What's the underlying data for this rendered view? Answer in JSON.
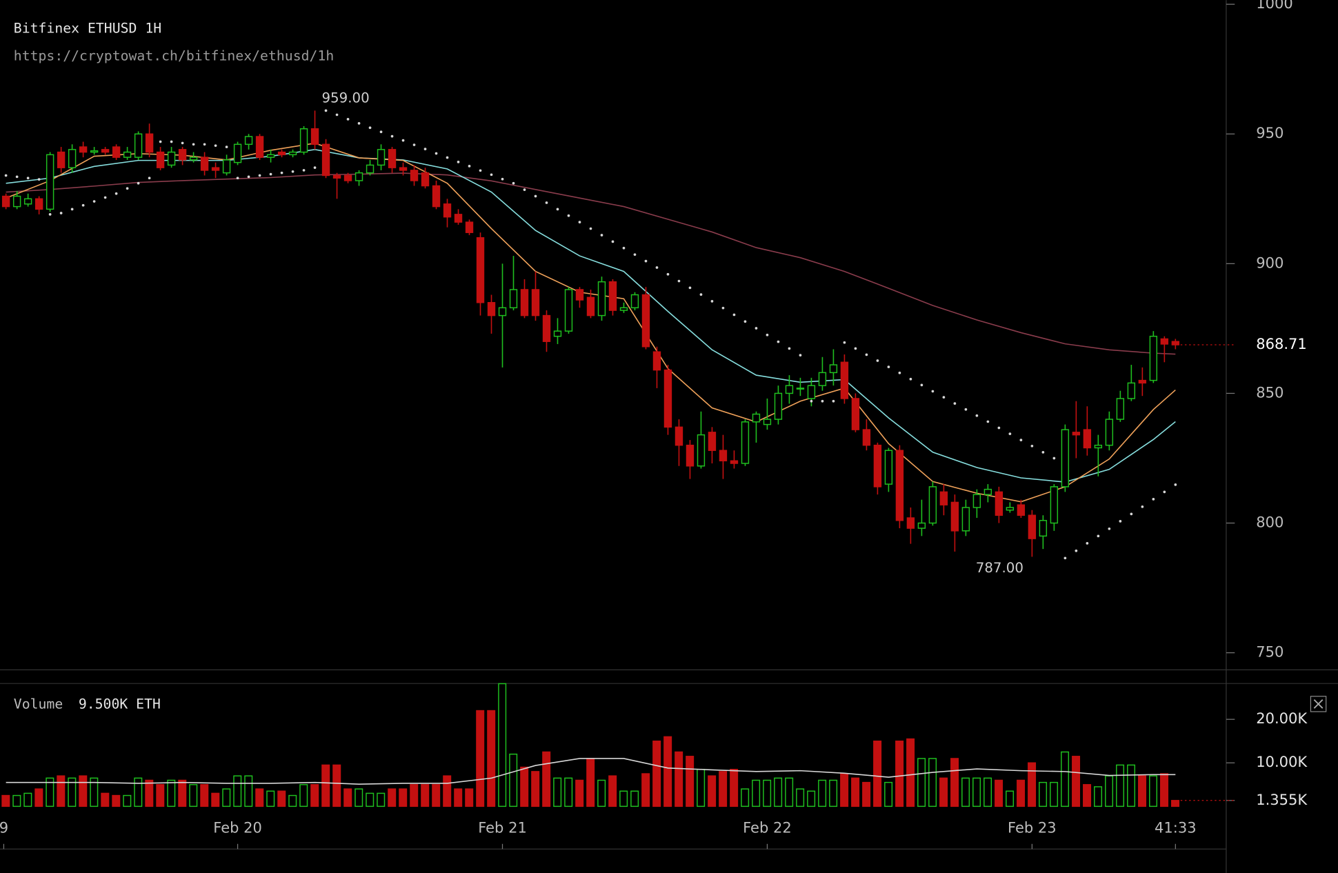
{
  "chart_data": {
    "type": "candlestick",
    "title": "Bitfinex ETHUSD 1H",
    "subtitle": "https://cryptowat.ch/bitfinex/ethusd/1h",
    "up_color": "#1fbf1f",
    "down_color": "#c41010",
    "xlim": [
      -0.54,
      110.6
    ],
    "xticks": [
      {
        "value": -0.2,
        "label": "9"
      },
      {
        "value": 21,
        "label": "Feb 20"
      },
      {
        "value": 45,
        "label": "Feb 21"
      },
      {
        "value": 69,
        "label": "Feb 22"
      },
      {
        "value": 93,
        "label": "Feb 23"
      },
      {
        "value": 106,
        "label": "41:33"
      }
    ],
    "ylim": [
      744.4,
      1001.6
    ],
    "yticks": [
      750,
      800,
      850,
      900,
      950,
      1000
    ],
    "open": [
      926,
      922,
      923,
      925,
      921,
      943,
      937,
      945,
      943,
      944,
      945,
      941,
      941,
      950,
      943,
      938,
      944,
      940,
      941,
      937,
      935,
      939,
      946,
      949,
      941,
      943,
      942,
      943,
      952,
      946,
      934,
      934,
      932,
      935,
      938,
      944,
      937,
      936,
      935,
      930,
      923,
      919,
      916,
      910,
      885,
      880,
      883,
      890,
      890,
      880,
      872,
      874,
      890,
      887,
      880,
      893,
      882,
      883,
      888,
      866,
      859,
      837,
      830,
      822,
      835,
      828,
      824,
      823,
      839,
      838,
      840,
      850,
      852,
      848,
      853,
      858,
      862,
      848,
      836,
      830,
      815,
      828,
      802,
      798,
      800,
      812,
      808,
      797,
      806,
      811,
      812,
      805,
      807,
      803,
      795,
      800,
      814,
      835,
      836,
      829,
      830,
      840,
      848,
      855,
      855,
      871,
      870
    ],
    "high": [
      927,
      928,
      927,
      926,
      943,
      945,
      946,
      947,
      945,
      945,
      946,
      945,
      951,
      954,
      945,
      945,
      945,
      943,
      943,
      939,
      942,
      947,
      950,
      950,
      944,
      944,
      944,
      953,
      959,
      948,
      935,
      935,
      936,
      940,
      946,
      945,
      939,
      938,
      937,
      932,
      925,
      921,
      917,
      912,
      888,
      900,
      903,
      894,
      897,
      882,
      879,
      891,
      891,
      890,
      895,
      894,
      885,
      889,
      891,
      868,
      861,
      840,
      832,
      843,
      837,
      834,
      828,
      840,
      843,
      848,
      853,
      857,
      856,
      856,
      864,
      867,
      865,
      850,
      840,
      831,
      829,
      830,
      806,
      809,
      816,
      815,
      811,
      809,
      813,
      815,
      814,
      808,
      809,
      805,
      803,
      815,
      838,
      847,
      845,
      834,
      843,
      851,
      861,
      860,
      874,
      872,
      871
    ],
    "low": [
      921,
      921,
      922,
      919,
      920,
      935,
      935,
      941,
      942,
      942,
      940,
      940,
      940,
      941,
      936,
      937,
      938,
      939,
      934,
      933,
      934,
      938,
      944,
      940,
      939,
      941,
      941,
      942,
      944,
      933,
      925,
      931,
      930,
      934,
      936,
      935,
      934,
      930,
      929,
      921,
      914,
      915,
      911,
      880,
      873,
      860,
      882,
      879,
      878,
      866,
      869,
      873,
      883,
      879,
      878,
      880,
      881,
      882,
      867,
      852,
      834,
      822,
      817,
      821,
      823,
      817,
      821,
      822,
      831,
      836,
      838,
      846,
      849,
      845,
      851,
      853,
      846,
      835,
      828,
      811,
      812,
      798,
      792,
      795,
      799,
      803,
      789,
      795,
      802,
      808,
      800,
      804,
      802,
      787,
      790,
      797,
      812,
      825,
      826,
      818,
      828,
      839,
      847,
      849,
      854,
      862,
      867
    ],
    "close": [
      922,
      926,
      925,
      921,
      942,
      937,
      944,
      943,
      943.5,
      943,
      941,
      943,
      950,
      943,
      937,
      943,
      940,
      941,
      936,
      936,
      940,
      946,
      949,
      941,
      942,
      942,
      943,
      952,
      946,
      934,
      933,
      932,
      935,
      938,
      944,
      937,
      936,
      932,
      930,
      922,
      918,
      916,
      912,
      885,
      880,
      883,
      890,
      880,
      880,
      870,
      874,
      890,
      886,
      880,
      893,
      882,
      883,
      888,
      868,
      859,
      837,
      830,
      822,
      834,
      828,
      824,
      823,
      839,
      842,
      840,
      850,
      853,
      852,
      853,
      858,
      861,
      848,
      836,
      830,
      814,
      828,
      801,
      798,
      800,
      814,
      807,
      797,
      806,
      811,
      813,
      803,
      806,
      803,
      794,
      801,
      814,
      836,
      834,
      829,
      830,
      840,
      848,
      854,
      854,
      872,
      869,
      868.71
    ],
    "annotations": [
      {
        "index": 28,
        "value": 959,
        "label": "959.00"
      },
      {
        "index": 93,
        "value": 787,
        "label": "787.00"
      }
    ],
    "lines": [
      {
        "color": "#f0a25a",
        "x": [
          0,
          4,
          8,
          12,
          16,
          20,
          24,
          28,
          32,
          36,
          40,
          44,
          48,
          52,
          56,
          60,
          64,
          68,
          72,
          76,
          80,
          84,
          88,
          92,
          96,
          100,
          104,
          106
        ],
        "values": [
          925.3,
          932,
          941.4,
          942.4,
          941.8,
          940,
          943.7,
          946.4,
          940.8,
          939.8,
          931,
          913.5,
          897,
          889,
          886.5,
          859.5,
          844.4,
          839,
          847,
          852,
          830.6,
          816,
          811.5,
          808.2,
          814,
          824.7,
          843.8,
          851.3
        ]
      },
      {
        "color": "#86dede",
        "x": [
          0,
          4,
          8,
          12,
          16,
          20,
          24,
          28,
          32,
          36,
          40,
          44,
          48,
          52,
          56,
          60,
          64,
          68,
          72,
          76,
          80,
          84,
          88,
          92,
          96,
          100,
          104,
          106
        ],
        "values": [
          931,
          933,
          937.5,
          939.8,
          939.8,
          939.8,
          941.4,
          944,
          940.8,
          940,
          936.5,
          927.6,
          912.8,
          903,
          897,
          881.6,
          866.8,
          857,
          854.3,
          855.3,
          840.5,
          827.3,
          821.4,
          817.4,
          815.8,
          820.7,
          832.2,
          839.1
        ]
      },
      {
        "color": "#8a3c4c",
        "x": [
          0,
          4,
          8,
          12,
          16,
          20,
          24,
          28,
          32,
          36,
          40,
          44,
          48,
          52,
          56,
          60,
          64,
          68,
          72,
          76,
          80,
          84,
          88,
          92,
          96,
          100,
          104,
          106
        ],
        "values": [
          927.6,
          928.6,
          929.9,
          931.3,
          932,
          932.6,
          933.2,
          934.2,
          934.5,
          934.9,
          934.2,
          931.9,
          928.6,
          925.3,
          922,
          917.1,
          912.2,
          906.2,
          902.3,
          897,
          890.5,
          883.9,
          878.3,
          873.4,
          869.1,
          866.8,
          865.5,
          865.1
        ]
      }
    ],
    "sar_color": "#d8d8d8",
    "sar": [
      934,
      933.5,
      933,
      932.5,
      919,
      919.5,
      921,
      922.5,
      924,
      925.5,
      927,
      929,
      931,
      933,
      947,
      947,
      946.5,
      946,
      946,
      945.5,
      945,
      933,
      933.5,
      934,
      934.5,
      935,
      935.5,
      936,
      937,
      959,
      957.4,
      955.7,
      954.1,
      952.4,
      950.8,
      949.1,
      947.5,
      945.8,
      944.2,
      942.5,
      940.9,
      939.2,
      937.6,
      935.9,
      934.3,
      932.6,
      931,
      928.5,
      926,
      923.5,
      921,
      918.5,
      916,
      913.5,
      911,
      908.5,
      906,
      903.5,
      901,
      898.5,
      895.9,
      893.3,
      890.7,
      888.1,
      885.5,
      882.9,
      880.3,
      877.7,
      875.1,
      872.5,
      869.9,
      867.3,
      864.7,
      847,
      847,
      847,
      869.6,
      867.3,
      864.9,
      862.6,
      860.2,
      857.9,
      855.5,
      853.2,
      850.8,
      848.5,
      846.1,
      843.8,
      841.4,
      839.1,
      836.7,
      834.4,
      832,
      829.7,
      827.3,
      825,
      786.5,
      789.3,
      792.2,
      795,
      797.8,
      800.7,
      803.5,
      806.3,
      809.2,
      812,
      814.8
    ],
    "volume_title": "Volume",
    "volume_legend": "9.500K ETH",
    "volume": [
      2500,
      2500,
      3000,
      4000,
      6500,
      7000,
      6500,
      7000,
      6500,
      3000,
      2500,
      2500,
      6500,
      6000,
      5000,
      6000,
      6000,
      5000,
      5000,
      3000,
      4000,
      7000,
      7000,
      4000,
      3500,
      3500,
      2500,
      5000,
      5000,
      9500,
      9500,
      4000,
      4000,
      3000,
      3000,
      4000,
      4000,
      5000,
      5000,
      5000,
      7000,
      4000,
      4000,
      22000,
      22000,
      28200,
      12000,
      9000,
      8000,
      12500,
      6500,
      6500,
      6000,
      11000,
      6000,
      7000,
      3500,
      3500,
      7500,
      15000,
      16000,
      12500,
      11500,
      8500,
      7000,
      8000,
      8500,
      4000,
      6000,
      6000,
      6500,
      6500,
      4000,
      3500,
      6000,
      6000,
      7500,
      6500,
      5500,
      15000,
      5500,
      15000,
      15500,
      11000,
      11000,
      6500,
      11000,
      6500,
      6500,
      6500,
      6000,
      3500,
      6000,
      10000,
      5500,
      5500,
      12500,
      11500,
      5000,
      4500,
      7000,
      9500,
      9500,
      7000,
      7000,
      7500,
      1355
    ],
    "volume_ylim": [
      0,
      28240
    ],
    "volume_yticks": [
      {
        "value": 20000,
        "label": "20.00K"
      },
      {
        "value": 10000,
        "label": "10.00K"
      },
      {
        "value": 1355,
        "label": "1.355K"
      }
    ],
    "volume_line": {
      "color": "#d8d8d8",
      "x": [
        0,
        4,
        8,
        12,
        16,
        20,
        24,
        28,
        32,
        36,
        40,
        44,
        48,
        52,
        56,
        60,
        64,
        68,
        72,
        76,
        80,
        84,
        88,
        92,
        96,
        100,
        104,
        106
      ],
      "values": [
        5500,
        5500,
        5500,
        5300,
        5500,
        5300,
        5300,
        5500,
        5100,
        5300,
        5300,
        6500,
        9400,
        11000,
        11000,
        8800,
        8400,
        8000,
        8200,
        7600,
        6700,
        7800,
        8600,
        8200,
        8000,
        7100,
        7300,
        7300
      ]
    }
  }
}
